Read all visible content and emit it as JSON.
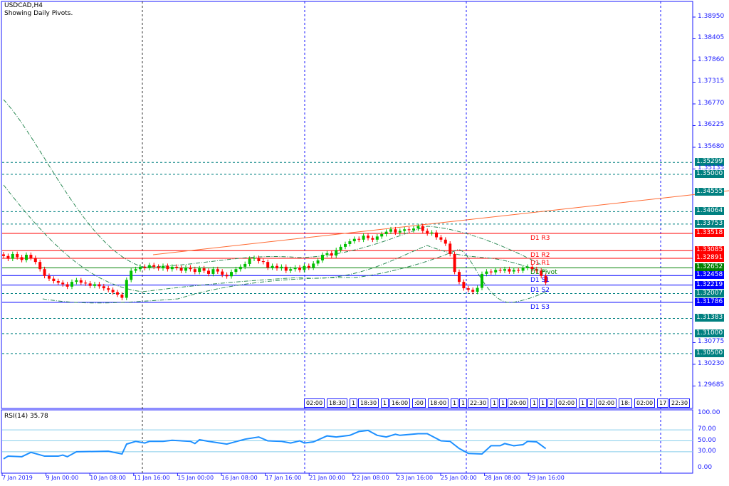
{
  "header": {
    "symbol": "USDCAD,H4",
    "subtitle": "Showing Daily Pivots."
  },
  "rsi": {
    "label": "RSI(14) 35.78",
    "levels": [
      30,
      50,
      70
    ],
    "axis": [
      "100.00",
      "70.00",
      "50.00",
      "30.00",
      "0.00"
    ],
    "color": "#1e90ff"
  },
  "price_axis": [
    "1.38950",
    "1.38405",
    "1.37860",
    "1.37315",
    "1.36770",
    "1.36225",
    "1.35680",
    "1.35135",
    "1.30775",
    "1.30230",
    "1.29685"
  ],
  "levels": [
    {
      "price": "1.35299",
      "style": "dashed",
      "color": "#008080"
    },
    {
      "price": "1.35000",
      "style": "dashed",
      "color": "#008080"
    },
    {
      "price": "1.34555",
      "style": "trend",
      "color": "#ff6a33"
    },
    {
      "price": "1.34064",
      "style": "dashed",
      "color": "#008080"
    },
    {
      "price": "1.33753",
      "style": "dashed",
      "color": "#008080"
    },
    {
      "price": "1.33518",
      "style": "solid",
      "color": "#ff0000"
    },
    {
      "price": "1.33085",
      "style": "solid",
      "color": "#ff0000"
    },
    {
      "price": "1.32891",
      "style": "solid",
      "color": "#ff0000"
    },
    {
      "price": "1.32652",
      "style": "solid",
      "color": "#008000"
    },
    {
      "price": "1.32458",
      "style": "solid",
      "color": "#0000ff"
    },
    {
      "price": "1.32219",
      "style": "solid",
      "color": "#0000ff"
    },
    {
      "price": "1.32007",
      "style": "dashed",
      "color": "#008080"
    },
    {
      "price": "1.31786",
      "style": "solid",
      "color": "#0000ff"
    },
    {
      "price": "1.31383",
      "style": "dashed",
      "color": "#008080"
    },
    {
      "price": "1.31000",
      "style": "dashed",
      "color": "#008080"
    },
    {
      "price": "1.30500",
      "style": "dashed",
      "color": "#008080"
    }
  ],
  "pivots": [
    {
      "name": "D1 R3",
      "price": 1.33518,
      "color": "#ff0000"
    },
    {
      "name": "D1 R2",
      "price": 1.33085,
      "color": "#ff0000"
    },
    {
      "name": "D1 R1",
      "price": 1.32891,
      "color": "#ff0000"
    },
    {
      "name": "D1 Pivot",
      "price": 1.32652,
      "color": "#008000"
    },
    {
      "name": "D1 S1",
      "price": 1.32458,
      "color": "#0000ff"
    },
    {
      "name": "D1 S2",
      "price": 1.32219,
      "color": "#0000ff"
    },
    {
      "name": "D1 S3",
      "price": 1.31786,
      "color": "#0000ff"
    }
  ],
  "time_axis": [
    "7 Jan 2019",
    "9 Jan 00:00",
    "10 Jan 08:00",
    "11 Jan 16:00",
    "15 Jan 00:00",
    "16 Jan 08:00",
    "17 Jan 16:00",
    "21 Jan 00:00",
    "22 Jan 08:00",
    "23 Jan 16:00",
    "25 Jan 00:00",
    "28 Jan 08:00",
    "29 Jan 16:00"
  ],
  "time_boxes": [
    "02:00",
    "18:30",
    "1",
    "18:30",
    "1",
    "16:00",
    ":00",
    "18:00",
    "1",
    "1",
    "22:30",
    "1",
    "1",
    "20:00",
    "1",
    "1",
    "2",
    "02:00",
    "1",
    "2",
    "02:00",
    "18:",
    "02:00",
    "17",
    "22:30"
  ],
  "colors": {
    "bull": "#00c000",
    "bear": "#ff0000",
    "axis": "#1a1aff"
  },
  "chart_data": {
    "type": "candlestick",
    "closes": [
      1.3295,
      1.3288,
      1.33,
      1.3292,
      1.3285,
      1.3298,
      1.329,
      1.328,
      1.3262,
      1.3245,
      1.3238,
      1.3232,
      1.3228,
      1.3224,
      1.3218,
      1.323,
      1.3234,
      1.3228,
      1.3226,
      1.322,
      1.3224,
      1.3219,
      1.3214,
      1.321,
      1.3204,
      1.3198,
      1.319,
      1.3235,
      1.3258,
      1.3262,
      1.3268,
      1.3265,
      1.3272,
      1.3268,
      1.3264,
      1.327,
      1.3262,
      1.3268,
      1.3265,
      1.3258,
      1.3266,
      1.3262,
      1.3255,
      1.3264,
      1.3258,
      1.325,
      1.3262,
      1.3256,
      1.3248,
      1.3244,
      1.3255,
      1.3262,
      1.3268,
      1.3275,
      1.3288,
      1.329,
      1.3282,
      1.328,
      1.3266,
      1.327,
      1.3264,
      1.3268,
      1.3258,
      1.3262,
      1.3266,
      1.326,
      1.327,
      1.3266,
      1.3276,
      1.3284,
      1.3298,
      1.3302,
      1.3296,
      1.331,
      1.3318,
      1.3325,
      1.3332,
      1.3338,
      1.3336,
      1.3346,
      1.334,
      1.3336,
      1.3344,
      1.335,
      1.3356,
      1.3362,
      1.3354,
      1.3358,
      1.3362,
      1.336,
      1.3364,
      1.337,
      1.3358,
      1.3352,
      1.3354,
      1.3342,
      1.3336,
      1.3326,
      1.33,
      1.3255,
      1.323,
      1.3214,
      1.321,
      1.3205,
      1.3215,
      1.325,
      1.3256,
      1.3254,
      1.326,
      1.3258,
      1.3262,
      1.3256,
      1.326,
      1.3258,
      1.3265,
      1.3268,
      1.3262,
      1.3258,
      1.3245,
      1.3228
    ],
    "rsi_points": [
      [
        0,
        17
      ],
      [
        1,
        22
      ],
      [
        4,
        21
      ],
      [
        6,
        29
      ],
      [
        9,
        22
      ],
      [
        12,
        22
      ],
      [
        13,
        24
      ],
      [
        14,
        21
      ],
      [
        16,
        30
      ],
      [
        23,
        31
      ],
      [
        26,
        26
      ],
      [
        27,
        44
      ],
      [
        29,
        49
      ],
      [
        31,
        46
      ],
      [
        32,
        49
      ],
      [
        35,
        49
      ],
      [
        37,
        51
      ],
      [
        41,
        49
      ],
      [
        42,
        45
      ],
      [
        43,
        52
      ],
      [
        45,
        49
      ],
      [
        49,
        44
      ],
      [
        53,
        53
      ],
      [
        56,
        57
      ],
      [
        58,
        50
      ],
      [
        61,
        49
      ],
      [
        63,
        46
      ],
      [
        65,
        50
      ],
      [
        66,
        46
      ],
      [
        68,
        48
      ],
      [
        71,
        59
      ],
      [
        73,
        57
      ],
      [
        76,
        60
      ],
      [
        78,
        67
      ],
      [
        80,
        69
      ],
      [
        82,
        60
      ],
      [
        84,
        57
      ],
      [
        86,
        62
      ],
      [
        87,
        60
      ],
      [
        91,
        63
      ],
      [
        93,
        63
      ],
      [
        96,
        50
      ],
      [
        98,
        49
      ],
      [
        100,
        36
      ],
      [
        102,
        27
      ],
      [
        105,
        26
      ],
      [
        107,
        41
      ],
      [
        109,
        41
      ],
      [
        110,
        45
      ],
      [
        112,
        41
      ],
      [
        114,
        43
      ],
      [
        115,
        49
      ],
      [
        117,
        48
      ],
      [
        119,
        35.78
      ]
    ],
    "ylim": [
      1.294,
      1.3935
    ]
  }
}
